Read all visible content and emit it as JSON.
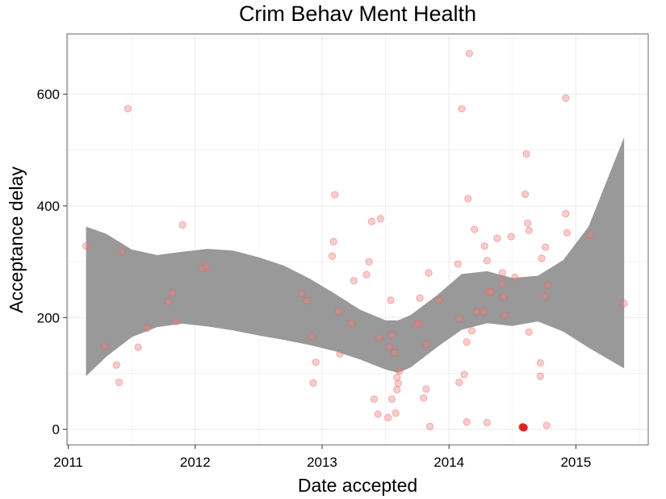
{
  "chart_data": {
    "type": "scatter",
    "title": "Crim Behav Ment Health",
    "xlabel": "Date accepted",
    "ylabel": "Acceptance delay",
    "xlim": [
      2010.99,
      2015.57
    ],
    "ylim": [
      -28,
      708
    ],
    "x_ticks": [
      2011,
      2012,
      2013,
      2014,
      2015
    ],
    "x_tick_labels": [
      "2011",
      "2012",
      "2013",
      "2014",
      "2015"
    ],
    "y_ticks": [
      0,
      200,
      400,
      600
    ],
    "y_tick_labels": [
      "0",
      "200",
      "400",
      "600"
    ],
    "grid": true,
    "colors": {
      "points": "#f08080",
      "highlight": "#e41a1c",
      "band": "#999999",
      "grid": "#ebebeb",
      "panel_border": "#7f7f7f"
    },
    "points": [
      {
        "x": 2011.14,
        "y": 328
      },
      {
        "x": 2011.29,
        "y": 149
      },
      {
        "x": 2011.38,
        "y": 115
      },
      {
        "x": 2011.4,
        "y": 84
      },
      {
        "x": 2011.42,
        "y": 318
      },
      {
        "x": 2011.47,
        "y": 574
      },
      {
        "x": 2011.55,
        "y": 147
      },
      {
        "x": 2011.62,
        "y": 181
      },
      {
        "x": 2011.79,
        "y": 229
      },
      {
        "x": 2011.82,
        "y": 244
      },
      {
        "x": 2011.85,
        "y": 193
      },
      {
        "x": 2011.9,
        "y": 366
      },
      {
        "x": 2012.06,
        "y": 288
      },
      {
        "x": 2012.09,
        "y": 292
      },
      {
        "x": 2012.84,
        "y": 243
      },
      {
        "x": 2012.88,
        "y": 230
      },
      {
        "x": 2012.92,
        "y": 166
      },
      {
        "x": 2012.93,
        "y": 83
      },
      {
        "x": 2012.95,
        "y": 120
      },
      {
        "x": 2013.08,
        "y": 310
      },
      {
        "x": 2013.09,
        "y": 336
      },
      {
        "x": 2013.1,
        "y": 420
      },
      {
        "x": 2013.13,
        "y": 211
      },
      {
        "x": 2013.14,
        "y": 135
      },
      {
        "x": 2013.23,
        "y": 190
      },
      {
        "x": 2013.25,
        "y": 266
      },
      {
        "x": 2013.35,
        "y": 277
      },
      {
        "x": 2013.37,
        "y": 300
      },
      {
        "x": 2013.39,
        "y": 372
      },
      {
        "x": 2013.41,
        "y": 54
      },
      {
        "x": 2013.44,
        "y": 27
      },
      {
        "x": 2013.45,
        "y": 164
      },
      {
        "x": 2013.46,
        "y": 377
      },
      {
        "x": 2013.52,
        "y": 21
      },
      {
        "x": 2013.53,
        "y": 147
      },
      {
        "x": 2013.54,
        "y": 231
      },
      {
        "x": 2013.55,
        "y": 54
      },
      {
        "x": 2013.55,
        "y": 169
      },
      {
        "x": 2013.57,
        "y": 137
      },
      {
        "x": 2013.58,
        "y": 29
      },
      {
        "x": 2013.59,
        "y": 71
      },
      {
        "x": 2013.59,
        "y": 93
      },
      {
        "x": 2013.6,
        "y": 82
      },
      {
        "x": 2013.61,
        "y": 104
      },
      {
        "x": 2013.74,
        "y": 187
      },
      {
        "x": 2013.76,
        "y": 189
      },
      {
        "x": 2013.77,
        "y": 235
      },
      {
        "x": 2013.8,
        "y": 56
      },
      {
        "x": 2013.82,
        "y": 152
      },
      {
        "x": 2013.82,
        "y": 72
      },
      {
        "x": 2013.84,
        "y": 280
      },
      {
        "x": 2013.85,
        "y": 5
      },
      {
        "x": 2013.92,
        "y": 231
      },
      {
        "x": 2014.07,
        "y": 296
      },
      {
        "x": 2014.08,
        "y": 84
      },
      {
        "x": 2014.08,
        "y": 198
      },
      {
        "x": 2014.1,
        "y": 574
      },
      {
        "x": 2014.12,
        "y": 98
      },
      {
        "x": 2014.14,
        "y": 156
      },
      {
        "x": 2014.14,
        "y": 13
      },
      {
        "x": 2014.15,
        "y": 413
      },
      {
        "x": 2014.16,
        "y": 673
      },
      {
        "x": 2014.18,
        "y": 176
      },
      {
        "x": 2014.2,
        "y": 358
      },
      {
        "x": 2014.22,
        "y": 210
      },
      {
        "x": 2014.27,
        "y": 211
      },
      {
        "x": 2014.28,
        "y": 328
      },
      {
        "x": 2014.3,
        "y": 302
      },
      {
        "x": 2014.3,
        "y": 12
      },
      {
        "x": 2014.31,
        "y": 245
      },
      {
        "x": 2014.33,
        "y": 246
      },
      {
        "x": 2014.38,
        "y": 342
      },
      {
        "x": 2014.42,
        "y": 260
      },
      {
        "x": 2014.42,
        "y": 280
      },
      {
        "x": 2014.43,
        "y": 237
      },
      {
        "x": 2014.44,
        "y": 204
      },
      {
        "x": 2014.49,
        "y": 345
      },
      {
        "x": 2014.52,
        "y": 272
      },
      {
        "x": 2014.6,
        "y": 421
      },
      {
        "x": 2014.61,
        "y": 493
      },
      {
        "x": 2014.62,
        "y": 369
      },
      {
        "x": 2014.63,
        "y": 356
      },
      {
        "x": 2014.63,
        "y": 174
      },
      {
        "x": 2014.72,
        "y": 119
      },
      {
        "x": 2014.72,
        "y": 95
      },
      {
        "x": 2014.73,
        "y": 306
      },
      {
        "x": 2014.76,
        "y": 326
      },
      {
        "x": 2014.76,
        "y": 238
      },
      {
        "x": 2014.77,
        "y": 7
      },
      {
        "x": 2014.78,
        "y": 258
      },
      {
        "x": 2014.92,
        "y": 593
      },
      {
        "x": 2014.92,
        "y": 386
      },
      {
        "x": 2014.93,
        "y": 352
      },
      {
        "x": 2015.11,
        "y": 348
      },
      {
        "x": 2015.38,
        "y": 225
      }
    ],
    "highlight_points": [
      {
        "x": 2014.58,
        "y": 4
      },
      {
        "x": 2014.59,
        "y": 3
      }
    ],
    "band": {
      "x": [
        2011.14,
        2011.3,
        2011.5,
        2011.7,
        2011.9,
        2012.1,
        2012.3,
        2012.5,
        2012.7,
        2012.9,
        2013.1,
        2013.3,
        2013.5,
        2013.6,
        2013.7,
        2013.9,
        2014.1,
        2014.3,
        2014.5,
        2014.7,
        2014.9,
        2015.1,
        2015.38
      ],
      "upper": [
        363,
        350,
        322,
        312,
        318,
        323,
        320,
        308,
        293,
        270,
        243,
        214,
        195,
        195,
        205,
        239,
        278,
        283,
        271,
        275,
        303,
        363,
        523
      ],
      "lower": [
        95,
        130,
        165,
        183,
        189,
        184,
        177,
        168,
        160,
        151,
        140,
        125,
        107,
        101,
        111,
        146,
        178,
        190,
        185,
        193,
        175,
        146,
        109
      ]
    }
  }
}
